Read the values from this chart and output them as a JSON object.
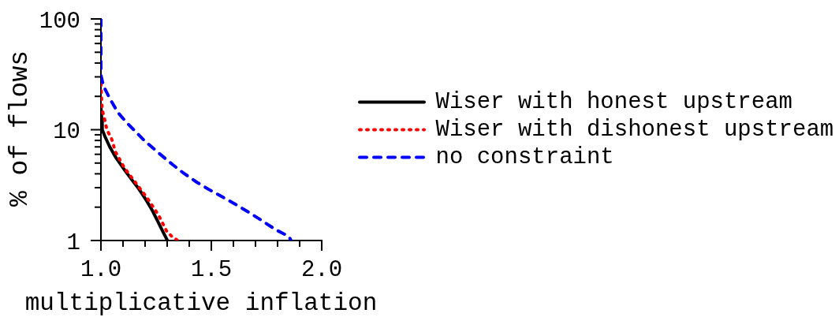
{
  "chart_data": {
    "type": "line",
    "xlabel": "multiplicative inflation",
    "ylabel": "% of flows",
    "log": "y",
    "legend": "right",
    "xlim": [
      1,
      2
    ],
    "ylim": [
      1,
      100
    ],
    "xticks": [
      {
        "value": 1,
        "label": "1.0"
      },
      {
        "value": 1.1,
        "label": null
      },
      {
        "value": 1.2,
        "label": null
      },
      {
        "value": 1.3,
        "label": null
      },
      {
        "value": 1.4,
        "label": null
      },
      1.5,
      {
        "value": 1.6,
        "label": null
      },
      {
        "value": 1.7,
        "label": null
      },
      {
        "value": 1.8,
        "label": null
      },
      {
        "value": 1.9,
        "label": null
      },
      {
        "value": 2,
        "label": "2.0"
      }
    ],
    "yticks": [
      1,
      {
        "value": 2,
        "label": null
      },
      {
        "value": 3,
        "label": null
      },
      {
        "value": 4,
        "label": null
      },
      {
        "value": 5,
        "label": null
      },
      {
        "value": 6,
        "label": null
      },
      {
        "value": 7,
        "label": null
      },
      {
        "value": 8,
        "label": null
      },
      {
        "value": 9,
        "label": null
      },
      10,
      {
        "value": 20,
        "label": null
      },
      {
        "value": 30,
        "label": null
      },
      {
        "value": 40,
        "label": null
      },
      {
        "value": 50,
        "label": null
      },
      {
        "value": 60,
        "label": null
      },
      {
        "value": 70,
        "label": null
      },
      {
        "value": 80,
        "label": null
      },
      {
        "value": 90,
        "label": null
      },
      100
    ],
    "series": [
      {
        "name": "Wiser with honest upstream",
        "color": "#000000",
        "line_style": "solid",
        "x": [
          1.0,
          1.004,
          1.006,
          1.018,
          1.04,
          1.068,
          1.101,
          1.137,
          1.173,
          1.203,
          1.232,
          1.256,
          1.28,
          1.301
        ],
        "values": [
          16,
          12.1,
          10,
          8.7,
          7.0,
          5.6,
          4.5,
          3.6,
          2.9,
          2.35,
          1.88,
          1.51,
          1.21,
          1.0
        ]
      },
      {
        "name": "Wiser with dishonest upstream",
        "color": "#ff0000",
        "line_style": "dotted",
        "x": [
          1.0,
          1.003,
          1.006,
          1.018,
          1.027,
          1.048,
          1.066,
          1.107,
          1.161,
          1.214,
          1.262,
          1.298,
          1.321,
          1.348
        ],
        "values": [
          26,
          18.8,
          15.1,
          12.1,
          10,
          8.3,
          6.3,
          4.5,
          3.25,
          2.35,
          1.68,
          1.21,
          1.09,
          1.0
        ]
      },
      {
        "name": "no constraint",
        "color": "#0000ff",
        "line_style": "dashed",
        "x": [
          1.0,
          1.0,
          1.012,
          1.042,
          1.077,
          1.113,
          1.155,
          1.196,
          1.256,
          1.327,
          1.375,
          1.435,
          1.494,
          1.554,
          1.613,
          1.673,
          1.732,
          1.792,
          1.851,
          1.861
        ],
        "values": [
          100,
          31,
          24.7,
          18.8,
          14.3,
          11.8,
          9.7,
          8.0,
          6.3,
          4.8,
          4.05,
          3.35,
          2.85,
          2.45,
          2.1,
          1.78,
          1.5,
          1.25,
          1.09,
          1.0
        ]
      }
    ]
  }
}
